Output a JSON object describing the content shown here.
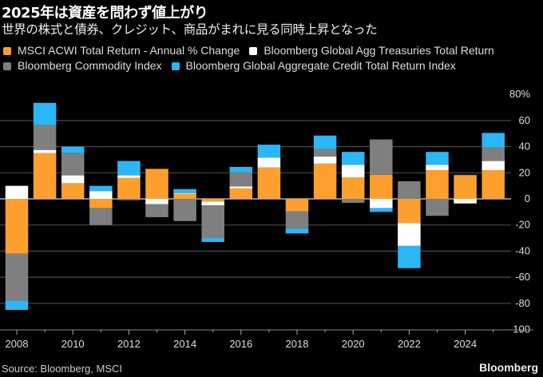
{
  "header": {
    "title": "2025年は資産を問わず値上がり",
    "subtitle": "世界の株式と債券、クレジット、商品がまれに見る同時上昇となった"
  },
  "footer": {
    "source": "Source: Bloomberg, MSCI",
    "brand": "Bloomberg"
  },
  "chart_data": {
    "type": "bar",
    "stacked": true,
    "title": "2025年は資産を問わず値上がり",
    "subtitle": "世界の株式と債券、クレジット、商品がまれに見る同時上昇となった",
    "xlabel": "",
    "ylabel": "",
    "ylim": [
      -100,
      80
    ],
    "y_ticks": [
      80,
      60,
      40,
      20,
      0,
      -20,
      -40,
      -60,
      -80,
      -100
    ],
    "y_tick_labels": [
      "80%",
      "60",
      "40",
      "20",
      "0",
      "-20",
      "-40",
      "-60",
      "-80",
      "-100"
    ],
    "y_axis_position": "right",
    "grid": true,
    "legend_position": "top-left",
    "categories": [
      "2008",
      "2009",
      "2010",
      "2011",
      "2012",
      "2013",
      "2014",
      "2015",
      "2016",
      "2017",
      "2018",
      "2019",
      "2020",
      "2021",
      "2022",
      "2023",
      "2024",
      "2025"
    ],
    "x_tick_labels": [
      "2008",
      "2010",
      "2012",
      "2014",
      "2016",
      "2018",
      "2020",
      "2022",
      "2024"
    ],
    "series": [
      {
        "name": "MSCI ACWI Total Return - Annual % Change",
        "color": "#ff9f2e",
        "values": [
          -42,
          35,
          12,
          -7,
          16,
          23,
          4,
          -2,
          8,
          24,
          -9.5,
          27,
          16.5,
          18.5,
          -18.5,
          22,
          18,
          22
        ]
      },
      {
        "name": "Bloomberg Global Agg Treasuries Total Return",
        "color": "#ffffff",
        "values": [
          10,
          2.5,
          6,
          6,
          2,
          -4,
          0.5,
          -3,
          1.5,
          7.5,
          0,
          5.5,
          9.5,
          -7,
          -17.5,
          4,
          -3.5,
          7
        ]
      },
      {
        "name": "Bloomberg Commodity Index",
        "color": "#7f7f7f",
        "values": [
          -36,
          19,
          17,
          -13,
          -1,
          -10,
          -17,
          -25,
          11,
          0,
          -13,
          5.5,
          -3,
          27,
          13.5,
          -13,
          0.5,
          10.5
        ]
      },
      {
        "name": "Bloomberg Global Aggregate Credit Total Return Index",
        "color": "#2bb6f5",
        "values": [
          -7,
          17,
          5,
          4,
          11,
          0,
          3,
          -3,
          4,
          10,
          -4,
          10.5,
          10,
          -3,
          -17,
          10,
          0,
          11
        ]
      }
    ]
  }
}
